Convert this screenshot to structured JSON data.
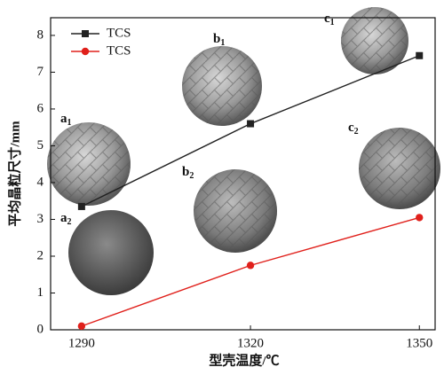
{
  "chart_data": {
    "type": "line",
    "x_label": "型壳温度/℃",
    "y_label": "平均晶粒尺寸/mm",
    "x": [
      1290,
      1320,
      1350
    ],
    "series": [
      {
        "name": "TCS",
        "color": "#222222",
        "marker": "square",
        "values": [
          3.35,
          5.6,
          7.45
        ]
      },
      {
        "name": "TCS",
        "color": "#e0201b",
        "marker": "circle",
        "values": [
          0.1,
          1.75,
          3.05
        ]
      }
    ],
    "xlim": [
      1284.5,
      1352.8
    ],
    "xticks": [
      1290,
      1320,
      1350
    ],
    "ylim": [
      0,
      8.48
    ],
    "yticks": [
      0,
      1,
      2,
      3,
      4,
      5,
      6,
      7,
      8
    ],
    "legend": "upper-left",
    "annotations": [
      {
        "text": "a",
        "sub": "1"
      },
      {
        "text": "a",
        "sub": "2"
      },
      {
        "text": "b",
        "sub": "1"
      },
      {
        "text": "b",
        "sub": "2"
      },
      {
        "text": "c",
        "sub": "1"
      },
      {
        "text": "c",
        "sub": "2"
      }
    ]
  }
}
